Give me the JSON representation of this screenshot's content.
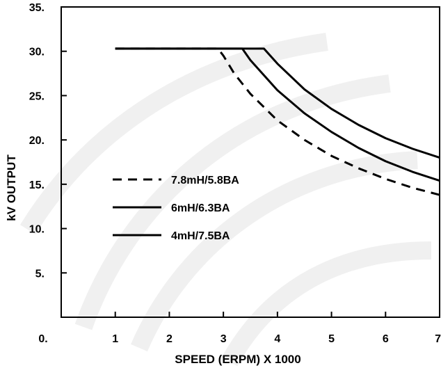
{
  "chart_data": {
    "type": "line",
    "title": "",
    "xlabel": "SPEED (ERPM) X 1000",
    "ylabel": "kV OUTPUT",
    "xlim": [
      0,
      7
    ],
    "ylim": [
      0,
      35
    ],
    "x_ticks": [
      {
        "value": 0,
        "label": "0."
      },
      {
        "value": 1,
        "label": "1"
      },
      {
        "value": 2,
        "label": "2"
      },
      {
        "value": 3,
        "label": "3"
      },
      {
        "value": 4,
        "label": "4"
      },
      {
        "value": 5,
        "label": "5"
      },
      {
        "value": 6,
        "label": "6"
      },
      {
        "value": 7,
        "label": "7"
      }
    ],
    "y_ticks": [
      {
        "value": 5,
        "label": "5."
      },
      {
        "value": 10,
        "label": "10."
      },
      {
        "value": 15,
        "label": "15."
      },
      {
        "value": 20,
        "label": "20."
      },
      {
        "value": 25,
        "label": "25."
      },
      {
        "value": 30,
        "label": "30."
      },
      {
        "value": 35,
        "label": "35."
      }
    ],
    "grid": false,
    "legend_position": "center-left",
    "series": [
      {
        "name": "7.8mH/5.8BA",
        "style": "dashed",
        "x": [
          1.0,
          2.0,
          2.9,
          3.0,
          3.2,
          3.5,
          4.0,
          4.5,
          5.0,
          5.5,
          6.0,
          6.5,
          7.0
        ],
        "y": [
          30.3,
          30.3,
          30.3,
          29.5,
          27.5,
          25.2,
          22.2,
          20.0,
          18.2,
          16.8,
          15.6,
          14.6,
          13.8
        ]
      },
      {
        "name": "6mH/6.3BA",
        "style": "solid",
        "x": [
          1.0,
          2.0,
          3.0,
          3.35,
          3.5,
          4.0,
          4.5,
          5.0,
          5.5,
          6.0,
          6.5,
          7.0
        ],
        "y": [
          30.3,
          30.3,
          30.3,
          30.3,
          29.0,
          25.6,
          23.0,
          20.9,
          19.1,
          17.6,
          16.4,
          15.4
        ]
      },
      {
        "name": "4mH/7.5BA",
        "style": "solid",
        "x": [
          1.0,
          2.0,
          3.0,
          3.75,
          4.0,
          4.5,
          5.0,
          5.5,
          6.0,
          6.5,
          7.0
        ],
        "y": [
          30.3,
          30.3,
          30.3,
          30.3,
          28.6,
          25.7,
          23.5,
          21.7,
          20.2,
          19.0,
          18.0
        ]
      }
    ]
  }
}
